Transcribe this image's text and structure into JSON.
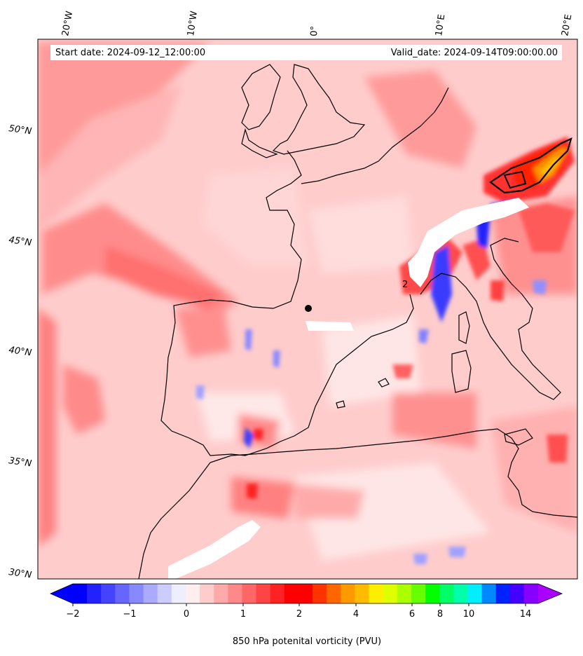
{
  "header": {
    "start_label": "Start date: 2024-09-12_12:00:00",
    "valid_label": "Valid_date: 2024-09-14T09:00:00.00"
  },
  "map": {
    "region": "Western Europe / Western Mediterranean",
    "lon_labels": [
      "20°W",
      "10°W",
      "0°",
      "10°E",
      "20°E"
    ],
    "lat_labels": [
      "50°N",
      "45°N",
      "40°N",
      "35°N",
      "30°N"
    ],
    "contour_label": "2"
  },
  "colorbar": {
    "ticks": [
      "-2",
      "-1",
      "0",
      "1",
      "2",
      "4",
      "6",
      "8",
      "10",
      "14"
    ],
    "label": "850 hPa potenital vorticity (PVU)",
    "colors": [
      "#0000ff",
      "#2222ff",
      "#4444ff",
      "#6666ff",
      "#8888ff",
      "#aaaaff",
      "#ccccff",
      "#eeeeff",
      "#ffeeee",
      "#ffcccc",
      "#ffaaaa",
      "#ff8888",
      "#ff6666",
      "#ff4444",
      "#ff2222",
      "#ff0000",
      "#ff0000",
      "#ff3300",
      "#ff6600",
      "#ff9900",
      "#ffbb00",
      "#ffee00",
      "#ddff00",
      "#aaff00",
      "#66ff00",
      "#00ff00",
      "#00ff66",
      "#00ffaa",
      "#00eeff",
      "#0088ff",
      "#0022ff",
      "#4400ff",
      "#8800ff"
    ],
    "under_color": "#0000ff",
    "over_color": "#aa00ff"
  }
}
